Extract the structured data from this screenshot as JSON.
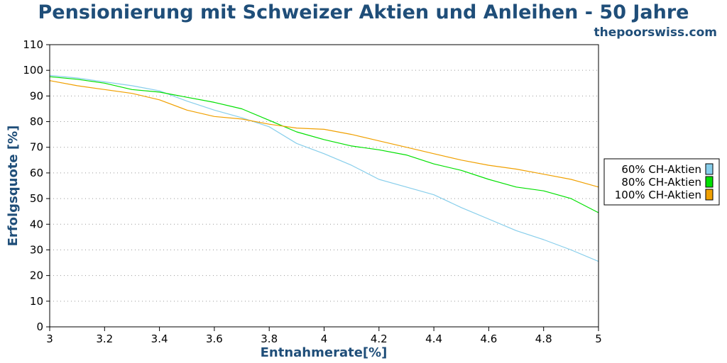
{
  "chart_data": {
    "type": "line",
    "title": "Pensionierung mit Schweizer Aktien und Anleihen - 50 Jahre",
    "subtitle": "thepoorswiss.com",
    "xlabel": "Entnahmerate[%]",
    "ylabel": "Erfolgsquote [%]",
    "xlim": [
      3,
      5
    ],
    "ylim": [
      0,
      110
    ],
    "x_ticks": [
      "3",
      "3.2",
      "3.4",
      "3.6",
      "3.8",
      "4",
      "4.2",
      "4.4",
      "4.6",
      "4.8",
      "5"
    ],
    "y_ticks": [
      "0",
      "10",
      "20",
      "30",
      "40",
      "50",
      "60",
      "70",
      "80",
      "90",
      "100",
      "110"
    ],
    "grid": "horizontal-dotted",
    "legend_position": "right",
    "x": [
      3.0,
      3.1,
      3.2,
      3.3,
      3.4,
      3.5,
      3.6,
      3.7,
      3.8,
      3.9,
      4.0,
      4.1,
      4.2,
      4.3,
      4.4,
      4.5,
      4.6,
      4.7,
      4.8,
      4.9,
      5.0
    ],
    "series": [
      {
        "name": "60% CH-Aktien",
        "color": "#87ceeb",
        "values": [
          98,
          97,
          95.5,
          94,
          92,
          88,
          84.5,
          81.5,
          78,
          71.5,
          67.5,
          63,
          57.5,
          54.5,
          51.5,
          46.5,
          42,
          37.5,
          34,
          30,
          25.5
        ]
      },
      {
        "name": "80% CH-Aktien",
        "color": "#00e000",
        "values": [
          97.5,
          96.5,
          95,
          92.5,
          91.5,
          89.5,
          87.5,
          85,
          80.5,
          76,
          73,
          70.5,
          69,
          67,
          63.5,
          61,
          57.5,
          54.5,
          53,
          50,
          44.5
        ]
      },
      {
        "name": "100% CH-Aktien",
        "color": "#f0a000",
        "values": [
          96,
          94,
          92.5,
          91,
          88.5,
          84.5,
          82,
          81,
          79,
          77.5,
          77,
          75,
          72.5,
          70,
          67.5,
          65,
          63,
          61.5,
          59.5,
          57.5,
          54.5
        ]
      }
    ]
  }
}
